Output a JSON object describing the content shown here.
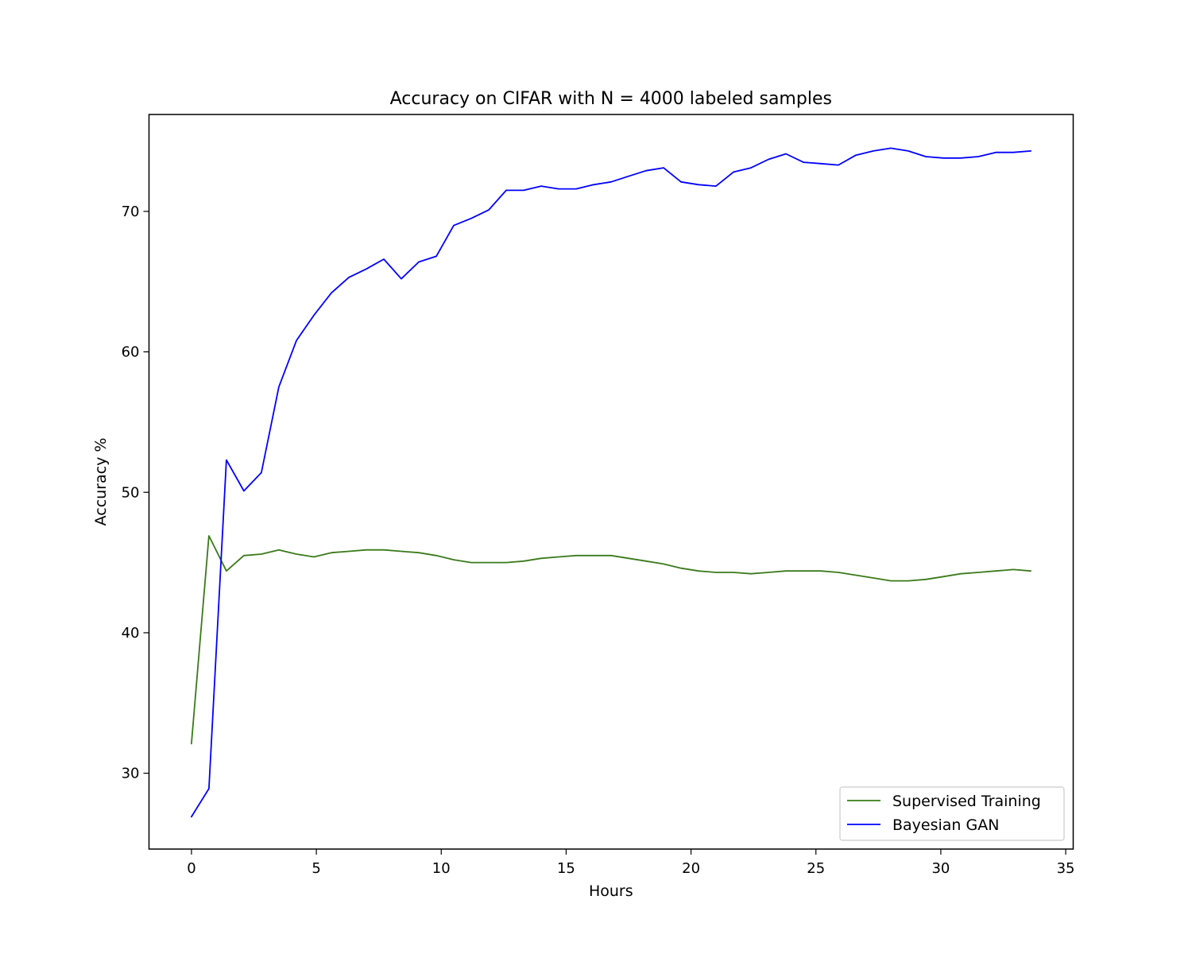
{
  "chart_data": {
    "type": "line",
    "title": "Accuracy on CIFAR with N = 4000 labeled samples",
    "xlabel": "Hours",
    "ylabel": "Accuracy %",
    "xlim": [
      -1.7,
      35.3
    ],
    "ylim": [
      24.6,
      76.9
    ],
    "xticks": [
      0,
      5,
      10,
      15,
      20,
      25,
      30,
      35
    ],
    "yticks": [
      30,
      40,
      50,
      60,
      70
    ],
    "grid": false,
    "legend_position": "bottom-right",
    "x": [
      0.0,
      0.7,
      1.4,
      2.1,
      2.8,
      3.5,
      4.2,
      4.9,
      5.6,
      6.3,
      7.0,
      7.7,
      8.4,
      9.1,
      9.8,
      10.5,
      11.2,
      11.9,
      12.6,
      13.3,
      14.0,
      14.7,
      15.4,
      16.1,
      16.8,
      17.5,
      18.2,
      18.9,
      19.6,
      20.3,
      21.0,
      21.7,
      22.4,
      23.1,
      23.8,
      24.5,
      25.2,
      25.9,
      26.6,
      27.3,
      28.0,
      28.7,
      29.4,
      30.1,
      30.8,
      31.5,
      32.2,
      32.9,
      33.6
    ],
    "series": [
      {
        "name": "Supervised Training",
        "color": "#3a7a1a",
        "values": [
          32.1,
          46.9,
          44.4,
          45.5,
          45.6,
          45.9,
          45.6,
          45.4,
          45.7,
          45.8,
          45.9,
          45.9,
          45.8,
          45.7,
          45.5,
          45.2,
          45.0,
          45.0,
          45.0,
          45.1,
          45.3,
          45.4,
          45.5,
          45.5,
          45.5,
          45.3,
          45.1,
          44.9,
          44.6,
          44.4,
          44.3,
          44.3,
          44.2,
          44.3,
          44.4,
          44.4,
          44.4,
          44.3,
          44.1,
          43.9,
          43.7,
          43.7,
          43.8,
          44.0,
          44.2,
          44.3,
          44.4,
          44.5,
          44.4
        ]
      },
      {
        "name": "Bayesian GAN",
        "color": "#0000ff",
        "values": [
          26.9,
          28.9,
          52.3,
          50.1,
          51.4,
          57.5,
          60.8,
          62.6,
          64.2,
          65.3,
          65.9,
          66.6,
          65.2,
          66.4,
          66.8,
          69.0,
          69.5,
          70.1,
          71.5,
          71.5,
          71.8,
          71.6,
          71.6,
          71.9,
          72.1,
          72.5,
          72.9,
          73.1,
          72.1,
          71.9,
          71.8,
          72.8,
          73.1,
          73.7,
          74.1,
          73.5,
          73.4,
          73.3,
          74.0,
          74.3,
          74.5,
          74.3,
          73.9,
          73.8,
          73.8,
          73.9,
          74.2,
          74.2,
          74.3
        ]
      }
    ]
  }
}
